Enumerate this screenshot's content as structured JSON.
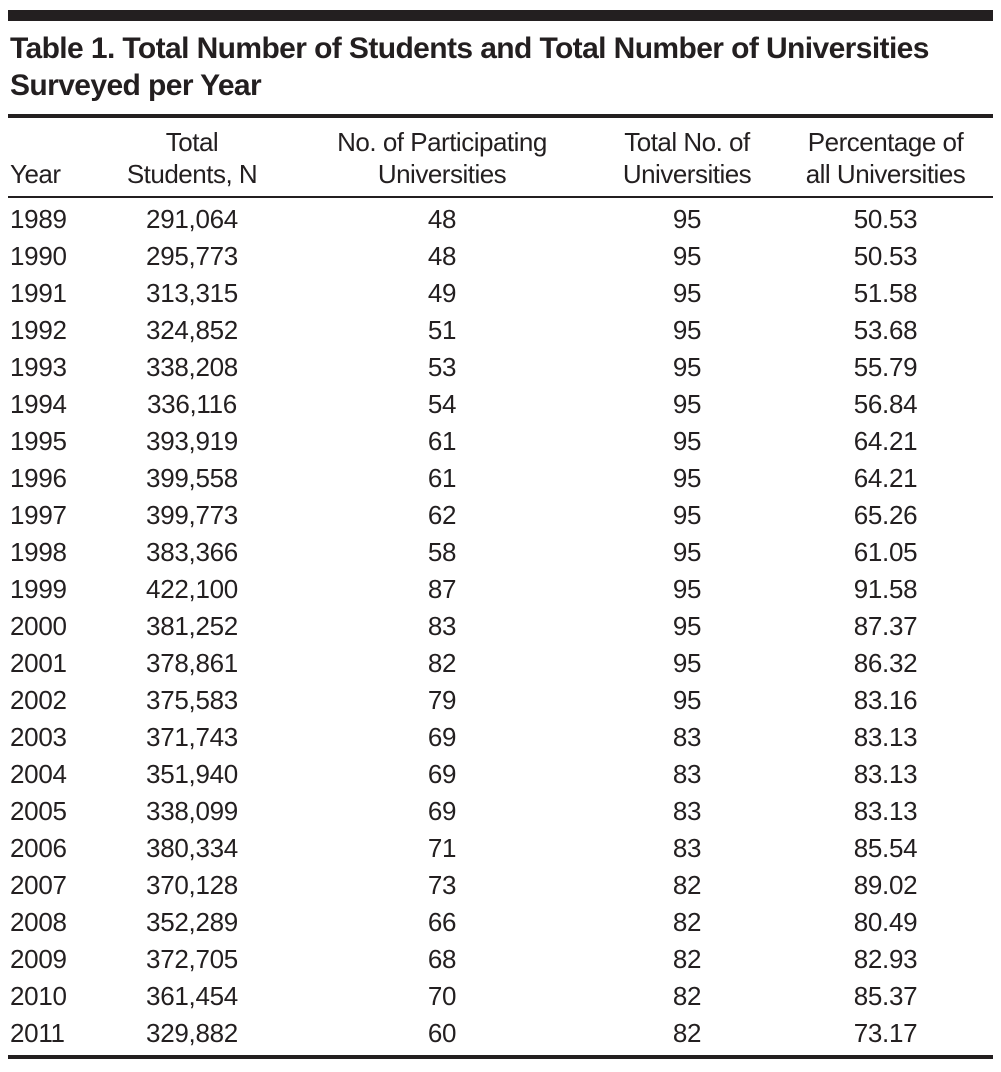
{
  "table": {
    "title": "Table 1. Total Number of Students and Total Number of Universities Surveyed per Year",
    "header": {
      "year": {
        "line1": "",
        "line2": "Year"
      },
      "students": {
        "line1": "Total",
        "line2": "Students, N"
      },
      "participating": {
        "line1": "No. of Participating",
        "line2": "Universities"
      },
      "total_uni": {
        "line1": "Total No. of",
        "line2": "Universities"
      },
      "percentage": {
        "line1": "Percentage of",
        "line2": "all Universities"
      }
    },
    "rows": [
      {
        "year": "1989",
        "students": "291,064",
        "participating": "48",
        "total_uni": "95",
        "percentage": "50.53"
      },
      {
        "year": "1990",
        "students": "295,773",
        "participating": "48",
        "total_uni": "95",
        "percentage": "50.53"
      },
      {
        "year": "1991",
        "students": "313,315",
        "participating": "49",
        "total_uni": "95",
        "percentage": "51.58"
      },
      {
        "year": "1992",
        "students": "324,852",
        "participating": "51",
        "total_uni": "95",
        "percentage": "53.68"
      },
      {
        "year": "1993",
        "students": "338,208",
        "participating": "53",
        "total_uni": "95",
        "percentage": "55.79"
      },
      {
        "year": "1994",
        "students": "336,116",
        "participating": "54",
        "total_uni": "95",
        "percentage": "56.84"
      },
      {
        "year": "1995",
        "students": "393,919",
        "participating": "61",
        "total_uni": "95",
        "percentage": "64.21"
      },
      {
        "year": "1996",
        "students": "399,558",
        "participating": "61",
        "total_uni": "95",
        "percentage": "64.21"
      },
      {
        "year": "1997",
        "students": "399,773",
        "participating": "62",
        "total_uni": "95",
        "percentage": "65.26"
      },
      {
        "year": "1998",
        "students": "383,366",
        "participating": "58",
        "total_uni": "95",
        "percentage": "61.05"
      },
      {
        "year": "1999",
        "students": "422,100",
        "participating": "87",
        "total_uni": "95",
        "percentage": "91.58"
      },
      {
        "year": "2000",
        "students": "381,252",
        "participating": "83",
        "total_uni": "95",
        "percentage": "87.37"
      },
      {
        "year": "2001",
        "students": "378,861",
        "participating": "82",
        "total_uni": "95",
        "percentage": "86.32"
      },
      {
        "year": "2002",
        "students": "375,583",
        "participating": "79",
        "total_uni": "95",
        "percentage": "83.16"
      },
      {
        "year": "2003",
        "students": "371,743",
        "participating": "69",
        "total_uni": "83",
        "percentage": "83.13"
      },
      {
        "year": "2004",
        "students": "351,940",
        "participating": "69",
        "total_uni": "83",
        "percentage": "83.13"
      },
      {
        "year": "2005",
        "students": "338,099",
        "participating": "69",
        "total_uni": "83",
        "percentage": "83.13"
      },
      {
        "year": "2006",
        "students": "380,334",
        "participating": "71",
        "total_uni": "83",
        "percentage": "85.54"
      },
      {
        "year": "2007",
        "students": "370,128",
        "participating": "73",
        "total_uni": "82",
        "percentage": "89.02"
      },
      {
        "year": "2008",
        "students": "352,289",
        "participating": "66",
        "total_uni": "82",
        "percentage": "80.49"
      },
      {
        "year": "2009",
        "students": "372,705",
        "participating": "68",
        "total_uni": "82",
        "percentage": "82.93"
      },
      {
        "year": "2010",
        "students": "361,454",
        "participating": "70",
        "total_uni": "82",
        "percentage": "85.37"
      },
      {
        "year": "2011",
        "students": "329,882",
        "participating": "60",
        "total_uni": "82",
        "percentage": "73.17"
      }
    ]
  },
  "colors": {
    "ink": "#231f20",
    "background": "#ffffff"
  }
}
